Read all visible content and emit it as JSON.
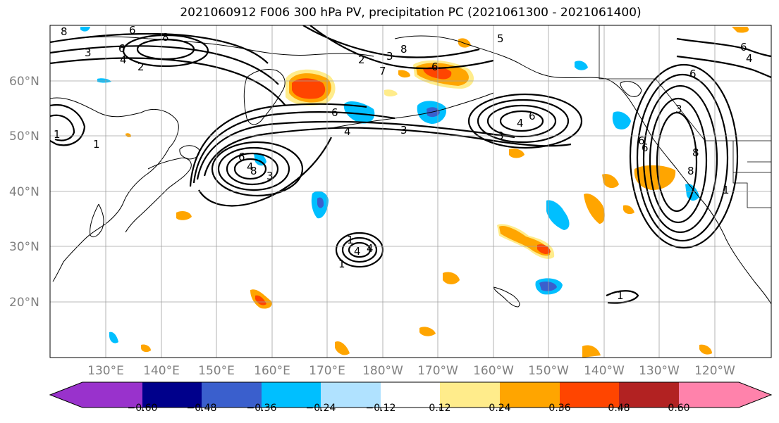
{
  "title": "2021060912 F006 300 hPa PV, precipitation PC (2021061300 - 2021061400)",
  "latitude_labels": [
    "60°N",
    "50°N",
    "40°N",
    "30°N",
    "20°N"
  ],
  "longitude_labels": [
    "130°E",
    "140°E",
    "150°E",
    "160°E",
    "170°E",
    "180°W",
    "170°W",
    "160°W",
    "150°W",
    "140°W",
    "130°W",
    "120°W"
  ],
  "colorbar": {
    "tick_labels": [
      "−0.60",
      "−0.48",
      "−0.36",
      "−0.24",
      "−0.12",
      "0.12",
      "0.24",
      "0.36",
      "0.48",
      "0.60"
    ],
    "colors": [
      "#9932cc",
      "#00008b",
      "#3a5fcd",
      "#00bfff",
      "#b0e2ff",
      "#ffffff",
      "#ffec8b",
      "#ffa500",
      "#ff4500",
      "#b22222",
      "#ff82ab"
    ]
  },
  "contour_labels": [
    "8",
    "6",
    "3",
    "6",
    "8",
    "4",
    "2",
    "8",
    "3",
    "6",
    "2",
    "7",
    "5",
    "6",
    "4",
    "3",
    "6",
    "3",
    "4",
    "6",
    "8",
    "4",
    "1",
    "3",
    "1",
    "6",
    "4",
    "6",
    "3",
    "6",
    "8",
    "6",
    "8",
    "1",
    "1",
    "4",
    "1",
    "4",
    "1"
  ]
}
